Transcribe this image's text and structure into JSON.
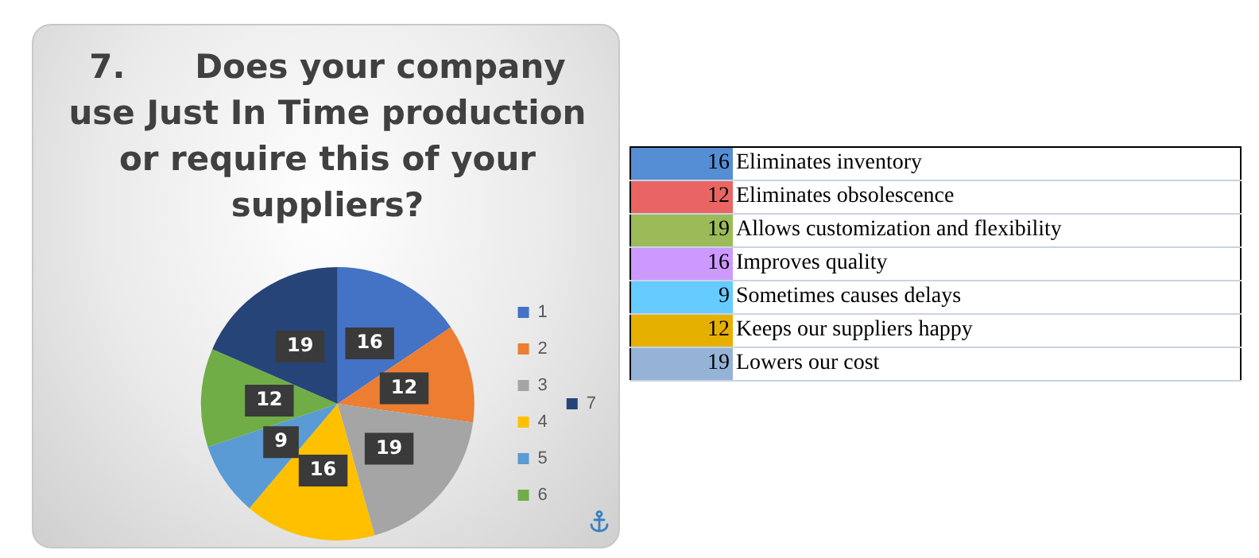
{
  "chart_data": [
    {
      "type": "pie",
      "title": "7.      Does your company use Just In Time production or require this of your suppliers?",
      "categories": [
        "1",
        "2",
        "3",
        "4",
        "5",
        "6",
        "7"
      ],
      "values": [
        16,
        12,
        19,
        16,
        9,
        12,
        19
      ],
      "colors": [
        "#4472c4",
        "#ed7d31",
        "#a5a5a5",
        "#ffc000",
        "#5b9bd5",
        "#70ad47",
        "#264478"
      ],
      "data_labels": true,
      "legend": "right"
    },
    {
      "type": "other",
      "categories": [
        "Eliminates inventory",
        "Eliminates obsolescence",
        "Allows customization and flexibility",
        "Improves quality",
        "Sometimes causes delays",
        "Keeps our suppliers happy",
        "Lowers our cost"
      ],
      "values": [
        16,
        12,
        19,
        16,
        9,
        12,
        19
      ],
      "colors": [
        "#558ed5",
        "#e96563",
        "#9bbb59",
        "#cc99ff",
        "#66ccff",
        "#e6b000",
        "#95b3d7"
      ],
      "data_labels": true
    }
  ]
}
